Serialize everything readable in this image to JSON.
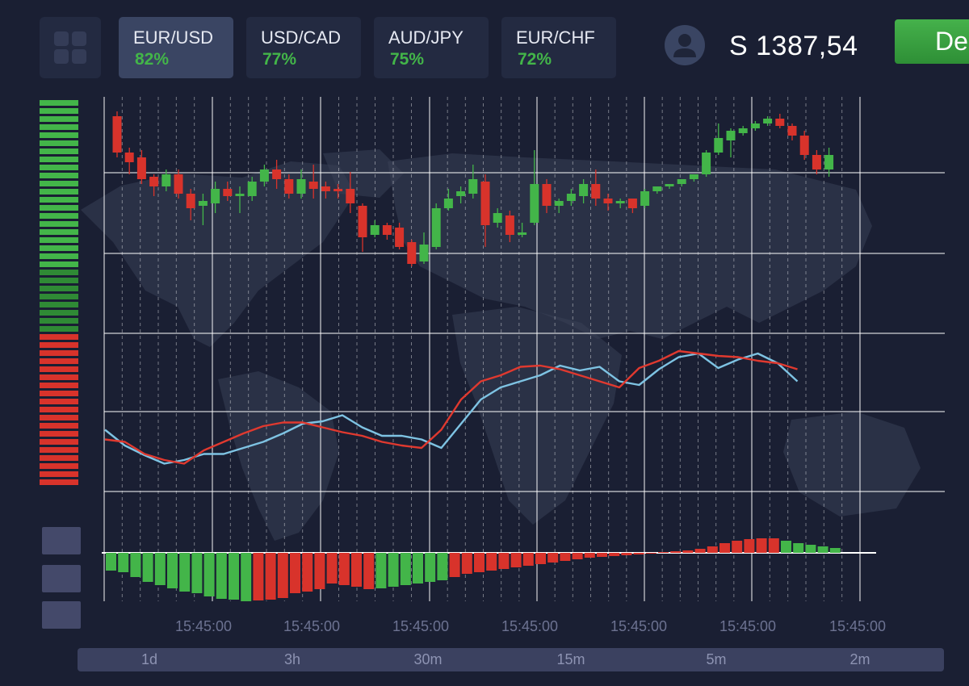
{
  "header": {
    "grid_icon": "grid-icon",
    "pairs": [
      {
        "name": "EUR/USD",
        "payout": "82%",
        "active": true
      },
      {
        "name": "USD/CAD",
        "payout": "77%",
        "active": false
      },
      {
        "name": "AUD/JPY",
        "payout": "75%",
        "active": false
      },
      {
        "name": "EUR/CHF",
        "payout": "72%",
        "active": false
      }
    ],
    "avatar_icon": "user-icon",
    "balance": "S 1387,54",
    "deposit_label": "De"
  },
  "colors": {
    "background": "#1a1f33",
    "up": "#43b549",
    "down": "#d8332b",
    "line_blue": "#7ec3e3",
    "line_red": "#e0392f",
    "grid": "#ffffff"
  },
  "sentiment": {
    "up_fraction": 0.6
  },
  "time_labels": [
    "15:45:00",
    "15:45:00",
    "15:45:00",
    "15:45:00",
    "15:45:00",
    "15:45:00",
    "15:45:00"
  ],
  "timeframes": [
    "1d",
    "3h",
    "30m",
    "15m",
    "5m",
    "2m"
  ],
  "chart_data": {
    "type": "line",
    "note_candles": "open/close/high/low in relative price units (0 = bottom of price panel, 100 = top)",
    "candles": [
      {
        "o": 92,
        "c": 77,
        "h": 94,
        "l": 75
      },
      {
        "o": 77,
        "c": 73,
        "h": 79,
        "l": 68
      },
      {
        "o": 75,
        "c": 66,
        "h": 78,
        "l": 64
      },
      {
        "o": 67,
        "c": 63,
        "h": 68,
        "l": 59
      },
      {
        "o": 63,
        "c": 68,
        "h": 70,
        "l": 61
      },
      {
        "o": 68,
        "c": 60,
        "h": 70,
        "l": 58
      },
      {
        "o": 60,
        "c": 54,
        "h": 62,
        "l": 49
      },
      {
        "o": 55,
        "c": 57,
        "h": 60,
        "l": 47
      },
      {
        "o": 56,
        "c": 62,
        "h": 65,
        "l": 52
      },
      {
        "o": 62,
        "c": 59,
        "h": 65,
        "l": 57
      },
      {
        "o": 59,
        "c": 60,
        "h": 63,
        "l": 52
      },
      {
        "o": 59,
        "c": 65,
        "h": 67,
        "l": 57
      },
      {
        "o": 65,
        "c": 70,
        "h": 72,
        "l": 63
      },
      {
        "o": 70,
        "c": 66,
        "h": 74,
        "l": 62
      },
      {
        "o": 66,
        "c": 60,
        "h": 68,
        "l": 58
      },
      {
        "o": 60,
        "c": 66,
        "h": 70,
        "l": 58
      },
      {
        "o": 65,
        "c": 62,
        "h": 72,
        "l": 58
      },
      {
        "o": 63,
        "c": 61,
        "h": 65,
        "l": 58
      },
      {
        "o": 62,
        "c": 61,
        "h": 64,
        "l": 58
      },
      {
        "o": 62,
        "c": 56,
        "h": 69,
        "l": 52
      },
      {
        "o": 55,
        "c": 42,
        "h": 56,
        "l": 36
      },
      {
        "o": 43,
        "c": 47,
        "h": 49,
        "l": 42
      },
      {
        "o": 47,
        "c": 43,
        "h": 48,
        "l": 41
      },
      {
        "o": 46,
        "c": 38,
        "h": 48,
        "l": 37
      },
      {
        "o": 40,
        "c": 31,
        "h": 41,
        "l": 30
      },
      {
        "o": 32,
        "c": 39,
        "h": 44,
        "l": 31
      },
      {
        "o": 38,
        "c": 54,
        "h": 56,
        "l": 37
      },
      {
        "o": 54,
        "c": 58,
        "h": 62,
        "l": 53
      },
      {
        "o": 59,
        "c": 61,
        "h": 63,
        "l": 56
      },
      {
        "o": 60,
        "c": 66,
        "h": 72,
        "l": 58
      },
      {
        "o": 65,
        "c": 47,
        "h": 68,
        "l": 38
      },
      {
        "o": 48,
        "c": 52,
        "h": 54,
        "l": 46
      },
      {
        "o": 51,
        "c": 43,
        "h": 53,
        "l": 40
      },
      {
        "o": 43,
        "c": 44,
        "h": 48,
        "l": 42
      },
      {
        "o": 48,
        "c": 64,
        "h": 78,
        "l": 47
      },
      {
        "o": 64,
        "c": 55,
        "h": 66,
        "l": 52
      },
      {
        "o": 55,
        "c": 57,
        "h": 58,
        "l": 52
      },
      {
        "o": 57,
        "c": 60,
        "h": 62,
        "l": 55
      },
      {
        "o": 59,
        "c": 64,
        "h": 66,
        "l": 56
      },
      {
        "o": 64,
        "c": 58,
        "h": 70,
        "l": 55
      },
      {
        "o": 58,
        "c": 56,
        "h": 60,
        "l": 53
      },
      {
        "o": 56,
        "c": 57,
        "h": 58,
        "l": 54
      },
      {
        "o": 58,
        "c": 54,
        "h": 58,
        "l": 52
      },
      {
        "o": 55,
        "c": 61,
        "h": 62,
        "l": 54
      },
      {
        "o": 61,
        "c": 63,
        "h": 63,
        "l": 60
      },
      {
        "o": 63,
        "c": 64,
        "h": 64,
        "l": 62
      },
      {
        "o": 64,
        "c": 66,
        "h": 66,
        "l": 63
      },
      {
        "o": 66,
        "c": 68,
        "h": 68,
        "l": 65
      },
      {
        "o": 68,
        "c": 77,
        "h": 78,
        "l": 67
      },
      {
        "o": 77,
        "c": 83,
        "h": 89,
        "l": 76
      },
      {
        "o": 82,
        "c": 86,
        "h": 87,
        "l": 75
      },
      {
        "o": 85,
        "c": 87,
        "h": 88,
        "l": 84
      },
      {
        "o": 87,
        "c": 89,
        "h": 90,
        "l": 86
      },
      {
        "o": 89,
        "c": 91,
        "h": 92,
        "l": 88
      },
      {
        "o": 91,
        "c": 88,
        "h": 93,
        "l": 87
      },
      {
        "o": 88,
        "c": 84,
        "h": 89,
        "l": 82
      },
      {
        "o": 84,
        "c": 76,
        "h": 86,
        "l": 74
      },
      {
        "o": 76,
        "c": 70,
        "h": 78,
        "l": 68
      },
      {
        "o": 70,
        "c": 76,
        "h": 79,
        "l": 67
      }
    ],
    "series": [
      {
        "color_key": "line_blue",
        "values": [
          55,
          42,
          34,
          27,
          30,
          35,
          35,
          40,
          45,
          52,
          60,
          62,
          67,
          57,
          50,
          50,
          47,
          40,
          60,
          80,
          90,
          95,
          100,
          108,
          104,
          107,
          95,
          92,
          105,
          115,
          118,
          106,
          113,
          118,
          110,
          95
        ]
      },
      {
        "color_key": "line_red",
        "values": [
          47,
          45,
          35,
          30,
          27,
          38,
          45,
          52,
          58,
          61,
          61,
          57,
          53,
          50,
          45,
          42,
          40,
          55,
          80,
          95,
          100,
          107,
          108,
          105,
          100,
          95,
          90,
          106,
          112,
          120,
          118,
          116,
          115,
          112,
          110,
          105
        ]
      }
    ],
    "histogram": {
      "note": "positive = bar extends above baseline",
      "green_values": [
        -22,
        -24,
        -30,
        -36,
        -40,
        -44,
        -48,
        -50,
        -54,
        -57,
        -58,
        -60,
        -59,
        -58,
        -56,
        -50,
        -48,
        -45,
        -38,
        -40,
        -42,
        -45,
        -44,
        -42,
        -40,
        -38,
        -36,
        -34,
        -30,
        -26,
        -24,
        -22,
        -20,
        -18,
        -16,
        -14,
        -12,
        -10,
        -8,
        -6,
        -5,
        -4,
        -3,
        -2,
        -1,
        1,
        2,
        3,
        5,
        8,
        12,
        15,
        17,
        18,
        18,
        15,
        12,
        10,
        8,
        6
      ],
      "colors": [
        "up",
        "up",
        "up",
        "up",
        "up",
        "up",
        "up",
        "up",
        "up",
        "up",
        "up",
        "up",
        "down",
        "down",
        "down",
        "down",
        "down",
        "down",
        "down",
        "down",
        "down",
        "down",
        "up",
        "up",
        "up",
        "up",
        "up",
        "up",
        "down",
        "down",
        "down",
        "down",
        "down",
        "down",
        "down",
        "down",
        "down",
        "down",
        "down",
        "down",
        "down",
        "down",
        "down",
        "down",
        "down",
        "down",
        "down",
        "down",
        "down",
        "down",
        "down",
        "down",
        "down",
        "down",
        "down",
        "up",
        "up",
        "up",
        "up",
        "up"
      ]
    }
  }
}
